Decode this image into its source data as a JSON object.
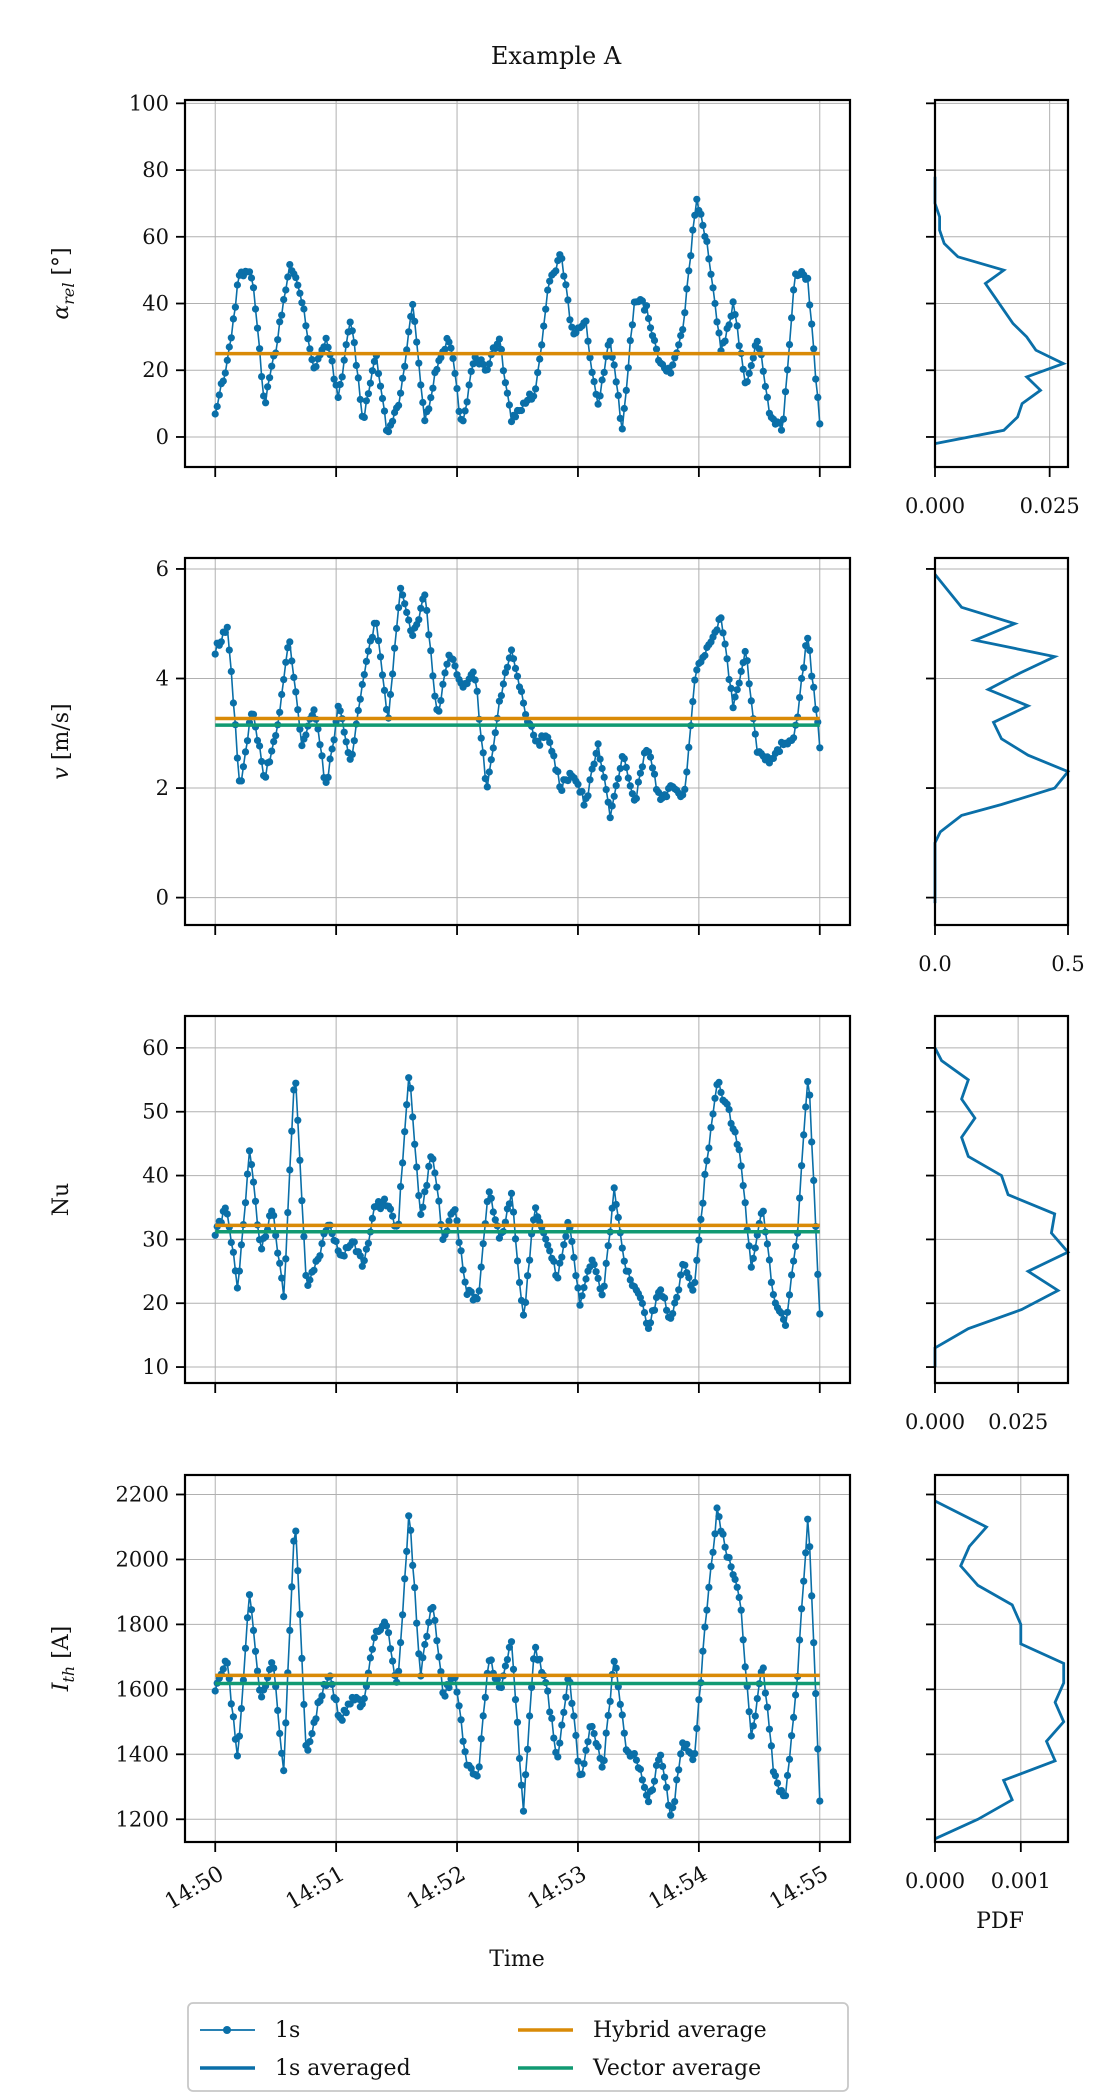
{
  "figure": {
    "title": "Example A"
  },
  "colors": {
    "series_1s": "#0a6fa8",
    "hybrid": "#d98a07",
    "vector": "#119a72",
    "grid": "#b0b0b0"
  },
  "legend": {
    "items": [
      {
        "label": "1s",
        "style": "line-marker",
        "color": "#0a6fa8"
      },
      {
        "label": "Hybrid average",
        "style": "line",
        "color": "#d98a07"
      },
      {
        "label": "1s averaged",
        "style": "line",
        "color": "#0a6fa8"
      },
      {
        "label": "Vector average",
        "style": "line",
        "color": "#119a72"
      }
    ]
  },
  "chart_data": [
    {
      "type": "line",
      "ylabel": "α_rel [°]",
      "ylim": [
        -9,
        101
      ],
      "yticks": [
        "0",
        "20",
        "40",
        "60",
        "80",
        "100"
      ],
      "xlabel": "",
      "xtick_labels": [],
      "x_minutes": [
        0,
        1,
        2,
        3,
        4,
        5
      ],
      "seed": 1,
      "anchors": [
        8,
        22,
        50,
        48,
        10,
        28,
        52,
        42,
        20,
        30,
        12,
        36,
        5,
        25,
        0,
        12,
        40,
        4,
        22,
        30,
        2,
        25,
        20,
        30,
        5,
        10,
        14,
        45,
        55,
        30,
        35,
        8,
        30,
        2,
        42,
        38,
        22,
        20,
        35,
        72,
        55,
        25,
        40,
        15,
        30,
        5,
        3,
        50,
        48,
        4
      ],
      "hybrid_average": 25,
      "vector_average": null,
      "pdf": {
        "xlim": [
          0,
          0.029
        ],
        "xtick_labels": [
          "0.000",
          "0.025"
        ],
        "xticks": [
          0.0,
          0.025
        ],
        "y": [
          -2,
          2,
          6,
          10,
          14,
          18,
          22,
          26,
          30,
          34,
          38,
          42,
          46,
          50,
          54,
          58,
          62,
          66,
          70,
          74,
          78
        ],
        "x": [
          0.0,
          0.015,
          0.018,
          0.019,
          0.023,
          0.02,
          0.028,
          0.022,
          0.02,
          0.017,
          0.015,
          0.013,
          0.011,
          0.015,
          0.005,
          0.002,
          0.001,
          0.001,
          0.0,
          0.0,
          0.0
        ]
      }
    },
    {
      "type": "line",
      "ylabel": "v [m/s]",
      "ylim": [
        -0.5,
        6.2
      ],
      "yticks": [
        "0",
        "2",
        "4",
        "6"
      ],
      "xlabel": "",
      "xtick_labels": [],
      "x_minutes": [
        0,
        1,
        2,
        3,
        4,
        5
      ],
      "seed": 2,
      "anchors": [
        4.5,
        5.0,
        2.0,
        3.5,
        2.2,
        3.0,
        4.8,
        2.8,
        3.5,
        2.0,
        3.5,
        2.5,
        4.0,
        5.1,
        3.2,
        5.7,
        4.8,
        5.5,
        3.3,
        4.5,
        3.8,
        4.2,
        2.0,
        3.5,
        4.6,
        3.5,
        2.8,
        3.0,
        2.0,
        2.3,
        1.7,
        2.8,
        1.5,
        2.6,
        1.7,
        2.8,
        1.8,
        2.0,
        1.8,
        4.2,
        4.6,
        5.1,
        3.5,
        4.5,
        2.6,
        2.5,
        2.8,
        3.0,
        4.8,
        2.8
      ],
      "hybrid_average": 3.27,
      "vector_average": 3.15,
      "pdf": {
        "xlim": [
          0,
          0.5
        ],
        "xtick_labels": [
          "0.0",
          "0.5"
        ],
        "xticks": [
          0.0,
          0.5
        ],
        "y": [
          -0.1,
          0.6,
          1.0,
          1.2,
          1.5,
          1.7,
          2.0,
          2.3,
          2.6,
          2.9,
          3.2,
          3.5,
          3.8,
          4.1,
          4.4,
          4.7,
          5.0,
          5.3,
          5.6,
          5.9
        ],
        "x": [
          0.0,
          0.0,
          0.0,
          0.02,
          0.1,
          0.25,
          0.45,
          0.5,
          0.35,
          0.25,
          0.22,
          0.35,
          0.2,
          0.32,
          0.45,
          0.15,
          0.3,
          0.1,
          0.05,
          0.0
        ]
      }
    },
    {
      "type": "line",
      "ylabel": "Nu",
      "ylim": [
        7.5,
        65
      ],
      "yticks": [
        "10",
        "20",
        "30",
        "40",
        "50",
        "60"
      ],
      "xlabel": "",
      "xtick_labels": [],
      "x_minutes": [
        0,
        1,
        2,
        3,
        4,
        5
      ],
      "seed": 3,
      "anchors": [
        31,
        35,
        22,
        44,
        28,
        35,
        21,
        57,
        22,
        27,
        33,
        27,
        30,
        26,
        35,
        36,
        31,
        57,
        33,
        44,
        30,
        35,
        22,
        20,
        38,
        30,
        37,
        17,
        35,
        30,
        24,
        33,
        20,
        27,
        21,
        38,
        25,
        22,
        16,
        23,
        17,
        26,
        22,
        41,
        55,
        50,
        44,
        25,
        35,
        20,
        17,
        30,
        57,
        18
      ],
      "hybrid_average": 32.2,
      "vector_average": 31.2,
      "pdf": {
        "xlim": [
          0,
          0.04
        ],
        "xtick_labels": [
          "0.000",
          "0.025"
        ],
        "xticks": [
          0.0,
          0.025
        ],
        "y": [
          10,
          13,
          16,
          19,
          22,
          25,
          28,
          31,
          34,
          37,
          40,
          43,
          46,
          49,
          52,
          55,
          58,
          60
        ],
        "x": [
          0.0,
          0.0,
          0.01,
          0.026,
          0.037,
          0.028,
          0.04,
          0.035,
          0.036,
          0.022,
          0.02,
          0.01,
          0.008,
          0.012,
          0.008,
          0.01,
          0.002,
          0.0
        ]
      }
    },
    {
      "type": "line",
      "ylabel": "I_th [A]",
      "ylim": [
        1130,
        2260
      ],
      "yticks": [
        "1200",
        "1400",
        "1600",
        "1800",
        "2000",
        "2200"
      ],
      "xlabel": "Time",
      "xtick_labels": [
        "14:50",
        "14:51",
        "14:52",
        "14:53",
        "14:54",
        "14:55"
      ],
      "x_minutes": [
        0,
        1,
        2,
        3,
        4,
        5
      ],
      "seed": 4,
      "anchors": [
        1600,
        1700,
        1380,
        1900,
        1560,
        1700,
        1350,
        2150,
        1380,
        1550,
        1650,
        1500,
        1580,
        1550,
        1780,
        1800,
        1600,
        2150,
        1640,
        1880,
        1580,
        1650,
        1380,
        1320,
        1700,
        1600,
        1750,
        1220,
        1730,
        1620,
        1380,
        1660,
        1320,
        1500,
        1360,
        1700,
        1420,
        1380,
        1250,
        1400,
        1200,
        1440,
        1380,
        1820,
        2150,
        2000,
        1880,
        1450,
        1680,
        1330,
        1260,
        1620,
        2150,
        1260
      ],
      "hybrid_average": 1643,
      "vector_average": 1618,
      "pdf": {
        "xlim": [
          0,
          0.00155
        ],
        "xtick_labels": [
          "0.000",
          "0.001"
        ],
        "xticks": [
          0.0,
          0.001
        ],
        "y": [
          1140,
          1200,
          1260,
          1320,
          1380,
          1440,
          1500,
          1560,
          1620,
          1680,
          1740,
          1800,
          1860,
          1920,
          1980,
          2040,
          2100,
          2180
        ],
        "x": [
          0.0,
          0.0005,
          0.0009,
          0.0008,
          0.0014,
          0.0013,
          0.0015,
          0.0014,
          0.0015,
          0.0015,
          0.001,
          0.001,
          0.0009,
          0.0005,
          0.0003,
          0.0004,
          0.0006,
          0.0
        ]
      }
    }
  ],
  "pdf_xlabel": "PDF"
}
